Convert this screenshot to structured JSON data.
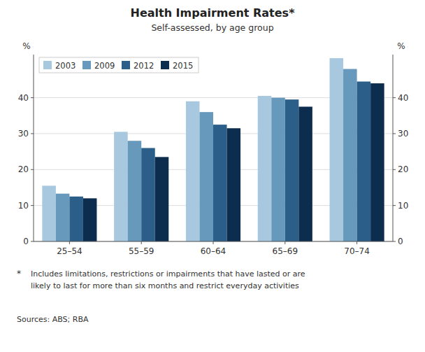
{
  "chart_data": {
    "type": "bar",
    "title": "Health Impairment Rates*",
    "subtitle": "Self-assessed, by age group",
    "categories": [
      "25–54",
      "55–59",
      "60–64",
      "65–69",
      "70–74"
    ],
    "series": [
      {
        "name": "2003",
        "color": "#a8c8e0",
        "values": [
          15.5,
          30.5,
          39.0,
          40.5,
          51.0
        ]
      },
      {
        "name": "2009",
        "color": "#6699bb",
        "values": [
          13.3,
          28.0,
          36.0,
          40.0,
          48.0
        ]
      },
      {
        "name": "2012",
        "color": "#2b5f8a",
        "values": [
          12.5,
          26.0,
          32.5,
          39.5,
          44.5
        ]
      },
      {
        "name": "2015",
        "color": "#0d2d4e",
        "values": [
          12.0,
          23.5,
          31.5,
          37.5,
          44.0
        ]
      }
    ],
    "ylabel": "%",
    "y2label": "%",
    "ylim": [
      0,
      52
    ],
    "yticks": [
      0,
      10,
      20,
      30,
      40
    ],
    "y2lim": [
      0,
      52
    ],
    "y2ticks": [
      0,
      10,
      20,
      30,
      40
    ],
    "grid": true,
    "legend": "upper left",
    "annotations": [
      "*",
      "Includes limitations, restrictions or impairments that have lasted or are\nlikely to last for more than six months and restrict everyday activities",
      "Sources:  ABS; RBA"
    ]
  }
}
